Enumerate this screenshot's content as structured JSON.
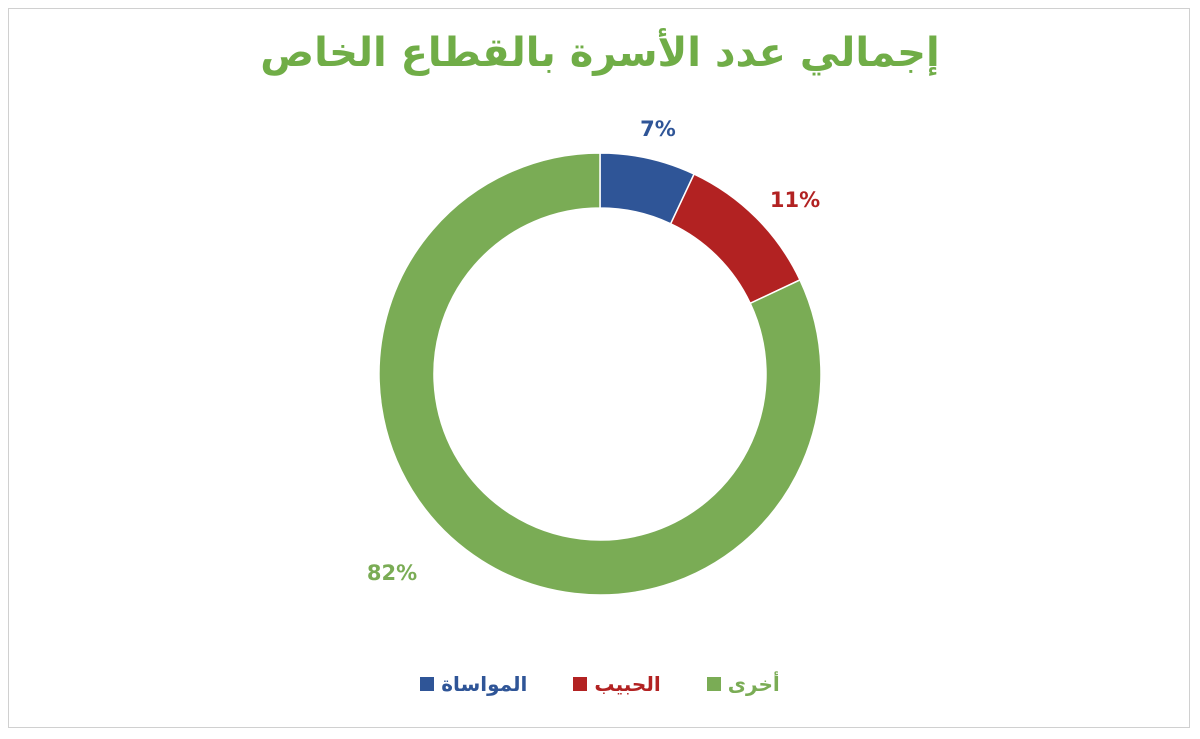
{
  "colors": {
    "title": "#70ad47",
    "almuwasat": "#2f5597",
    "alhabib": "#b22222",
    "other": "#7aac55"
  },
  "chart_data": {
    "type": "pie",
    "donut": true,
    "title": "إجمالي عدد الأسرة بالقطاع الخاص",
    "start_angle_deg": 0,
    "slices": [
      {
        "label": "المواساة",
        "value": 7,
        "data_label": "7%",
        "color": "#2f5597"
      },
      {
        "label": "الحبيب",
        "value": 11,
        "data_label": "11%",
        "color": "#b22222"
      },
      {
        "label": "أخرى",
        "value": 82,
        "data_label": "82%",
        "color": "#7aac55"
      }
    ],
    "legend_position": "bottom"
  }
}
